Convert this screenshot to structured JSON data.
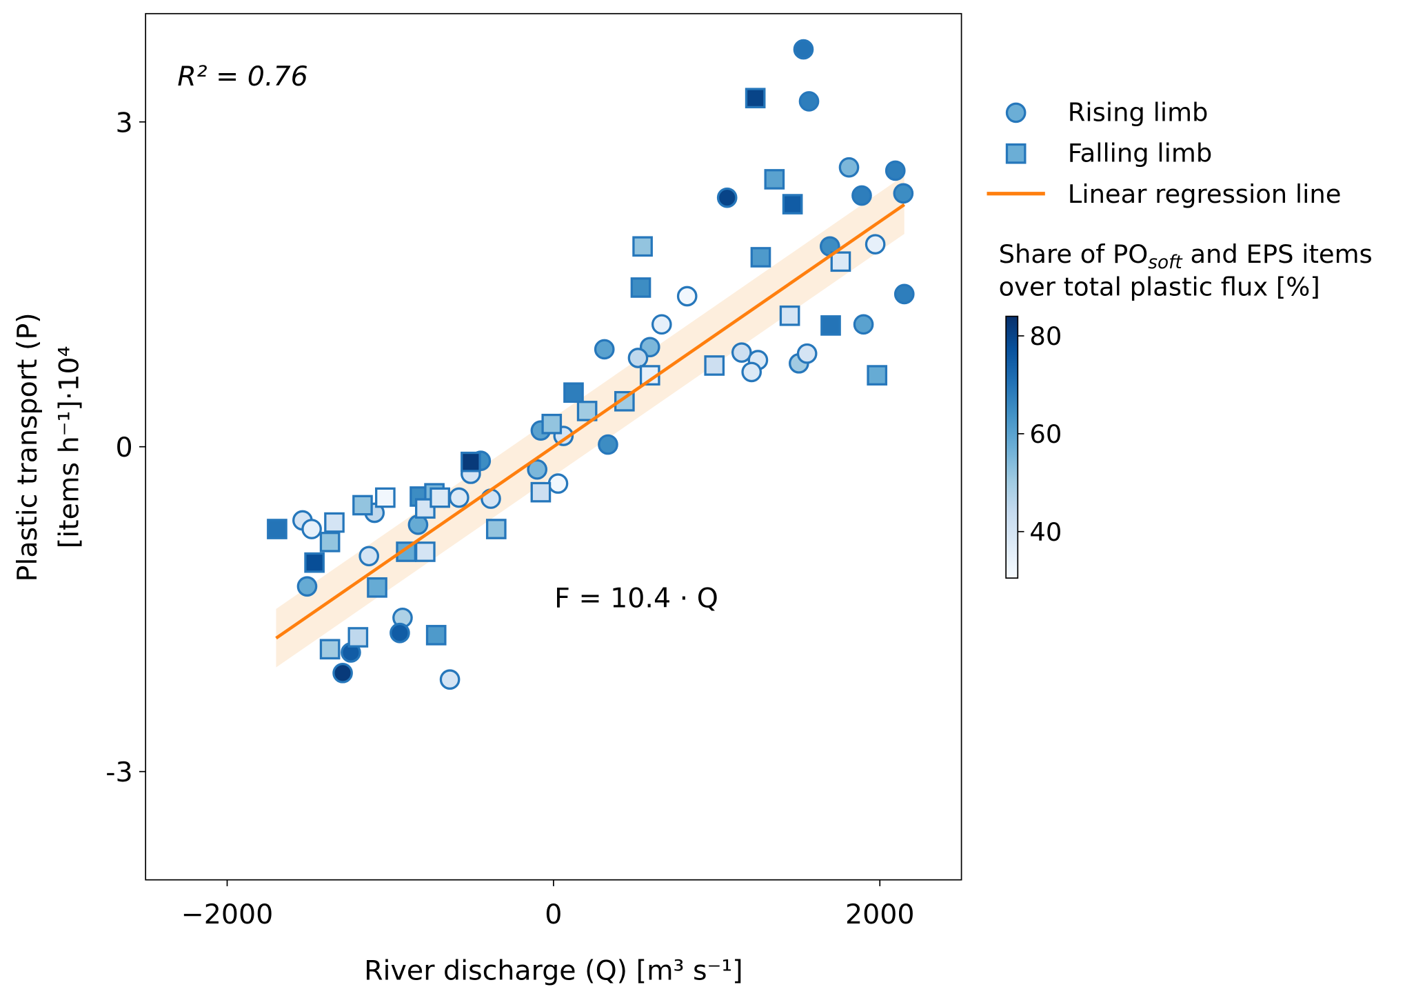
{
  "chart_data": {
    "type": "scatter",
    "xlabel": "River discharge (Q) [m³ s⁻¹]",
    "ylabel_line1": "Plastic transport (P)",
    "ylabel_line2": "[items h⁻¹]·10⁴",
    "xlim": [
      -2500,
      2500
    ],
    "ylim": [
      -4,
      4
    ],
    "xticks": [
      {
        "v": -2000,
        "label": "−2000"
      },
      {
        "v": 0,
        "label": "0"
      },
      {
        "v": 2000,
        "label": "2000"
      }
    ],
    "yticks": [
      {
        "v": 3,
        "label": "3"
      },
      {
        "v": 0,
        "label": "0"
      },
      {
        "v": -3,
        "label": "-3"
      }
    ],
    "annotations": {
      "r2": "R² = 0.76",
      "equation": "F = 10.4 · Q"
    },
    "regression": {
      "slope": 0.00104,
      "intercept": 0,
      "x_range": [
        -1700,
        2150
      ],
      "band_halfwidth": 0.27,
      "color": "#ff7f0e",
      "band_color": "#fdeedd"
    },
    "legend": {
      "placement": "right-outside",
      "entries": [
        "Rising limb",
        "Falling limb",
        "Linear regression line"
      ]
    },
    "colorbar": {
      "title_part1": "Share of PO",
      "title_sub": "soft",
      "title_part2": " and EPS items",
      "title_line2": "over total plastic flux [%]",
      "range": [
        30.5,
        84
      ],
      "ticks": [
        {
          "v": 80,
          "label": "80"
        },
        {
          "v": 60,
          "label": "60"
        },
        {
          "v": 40,
          "label": "40"
        }
      ],
      "colormap": "Blues"
    },
    "marker_edge_color": "#2677bb",
    "series": [
      {
        "name": "Rising limb",
        "marker": "circle",
        "points": [
          [
            1532,
            3.67,
            70
          ],
          [
            1566,
            3.19,
            68
          ],
          [
            1811,
            2.58,
            55
          ],
          [
            2095,
            2.55,
            68
          ],
          [
            1889,
            2.32,
            68
          ],
          [
            2144,
            2.34,
            65
          ],
          [
            1064,
            2.3,
            80
          ],
          [
            1694,
            1.85,
            65
          ],
          [
            1972,
            1.87,
            35
          ],
          [
            2150,
            1.41,
            68
          ],
          [
            819,
            1.39,
            32
          ],
          [
            1900,
            1.13,
            60
          ],
          [
            663,
            1.13,
            35
          ],
          [
            312,
            0.9,
            60
          ],
          [
            591,
            0.92,
            55
          ],
          [
            518,
            0.82,
            45
          ],
          [
            1153,
            0.87,
            42
          ],
          [
            1253,
            0.8,
            38
          ],
          [
            1214,
            0.69,
            38
          ],
          [
            1504,
            0.77,
            50
          ],
          [
            1554,
            0.86,
            40
          ],
          [
            -78,
            0.15,
            60
          ],
          [
            61,
            0.1,
            40
          ],
          [
            334,
            0.02,
            65
          ],
          [
            28,
            -0.34,
            32
          ],
          [
            -100,
            -0.21,
            55
          ],
          [
            -446,
            -0.13,
            65
          ],
          [
            -507,
            -0.25,
            40
          ],
          [
            -579,
            -0.47,
            38
          ],
          [
            -384,
            -0.48,
            40
          ],
          [
            -830,
            -0.72,
            58
          ],
          [
            -1097,
            -0.61,
            45
          ],
          [
            -1131,
            -1.01,
            40
          ],
          [
            -1538,
            -0.68,
            40
          ],
          [
            -1482,
            -0.76,
            35
          ],
          [
            -1510,
            -1.29,
            58
          ],
          [
            -925,
            -1.58,
            48
          ],
          [
            -942,
            -1.72,
            75
          ],
          [
            -1242,
            -1.9,
            75
          ],
          [
            -1292,
            -2.09,
            82
          ],
          [
            -635,
            -2.15,
            40
          ]
        ]
      },
      {
        "name": "Falling limb",
        "marker": "square",
        "points": [
          [
            1237,
            3.22,
            80
          ],
          [
            1354,
            2.47,
            60
          ],
          [
            1465,
            2.24,
            75
          ],
          [
            546,
            1.85,
            52
          ],
          [
            1270,
            1.75,
            62
          ],
          [
            1760,
            1.71,
            38
          ],
          [
            535,
            1.47,
            65
          ],
          [
            1448,
            1.21,
            40
          ],
          [
            1699,
            1.12,
            70
          ],
          [
            986,
            0.75,
            42
          ],
          [
            591,
            0.66,
            35
          ],
          [
            1983,
            0.66,
            58
          ],
          [
            123,
            0.5,
            68
          ],
          [
            206,
            0.33,
            50
          ],
          [
            435,
            0.42,
            50
          ],
          [
            -11,
            0.21,
            52
          ],
          [
            -507,
            -0.14,
            82
          ],
          [
            -78,
            -0.42,
            42
          ],
          [
            -1031,
            -0.47,
            32
          ],
          [
            -1170,
            -0.54,
            52
          ],
          [
            -1343,
            -0.7,
            40
          ],
          [
            -819,
            -0.46,
            65
          ],
          [
            -730,
            -0.43,
            55
          ],
          [
            -786,
            -0.57,
            40
          ],
          [
            -696,
            -0.47,
            38
          ],
          [
            -351,
            -0.76,
            52
          ],
          [
            -1694,
            -0.76,
            70
          ],
          [
            -1370,
            -0.88,
            52
          ],
          [
            -1465,
            -1.07,
            78
          ],
          [
            -903,
            -0.97,
            58
          ],
          [
            -786,
            -0.97,
            40
          ],
          [
            -1081,
            -1.3,
            58
          ],
          [
            -719,
            -1.74,
            62
          ],
          [
            -1198,
            -1.76,
            45
          ],
          [
            -1370,
            -1.87,
            50
          ]
        ]
      }
    ]
  }
}
